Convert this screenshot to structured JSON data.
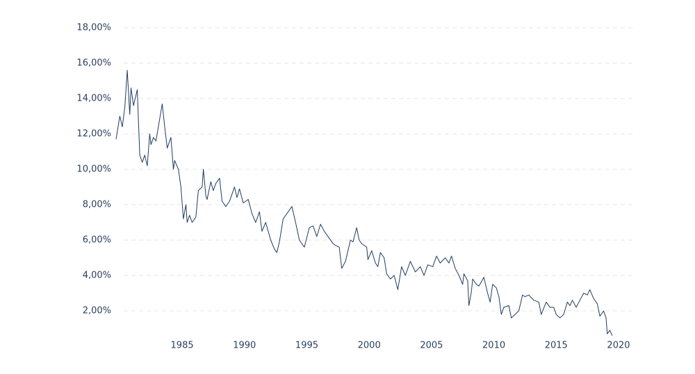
{
  "chart_data": {
    "type": "line",
    "x": [
      1979.7,
      1980.0,
      1980.2,
      1980.4,
      1980.6,
      1980.8,
      1980.9,
      1981.1,
      1981.4,
      1981.6,
      1981.8,
      1982.0,
      1982.2,
      1982.4,
      1982.5,
      1982.7,
      1982.9,
      1983.4,
      1983.6,
      1983.8,
      1984.1,
      1984.3,
      1984.4,
      1984.7,
      1984.9,
      1985.1,
      1985.3,
      1985.4,
      1985.6,
      1985.8,
      1986.1,
      1986.3,
      1986.6,
      1986.7,
      1986.9,
      1987.0,
      1987.3,
      1987.5,
      1987.7,
      1988.0,
      1988.2,
      1988.5,
      1988.8,
      1989.2,
      1989.4,
      1989.6,
      1989.9,
      1990.3,
      1990.6,
      1990.9,
      1991.2,
      1991.4,
      1991.7,
      1992.1,
      1992.4,
      1992.6,
      1992.8,
      1993.1,
      1993.4,
      1993.8,
      1994.1,
      1994.4,
      1994.8,
      1995.2,
      1995.5,
      1995.8,
      1996.1,
      1996.4,
      1996.7,
      1997.1,
      1997.3,
      1997.6,
      1997.8,
      1998.1,
      1998.5,
      1998.7,
      1999.0,
      1999.2,
      1999.4,
      1999.8,
      1999.9,
      2000.2,
      2000.5,
      2000.7,
      2000.9,
      2001.2,
      2001.4,
      2001.7,
      2002.0,
      2002.3,
      2002.6,
      2002.9,
      2003.3,
      2003.7,
      2004.1,
      2004.4,
      2004.7,
      2005.1,
      2005.4,
      2005.7,
      2006.1,
      2006.4,
      2006.6,
      2006.9,
      2007.2,
      2007.5,
      2007.6,
      2007.9,
      2008.0,
      2008.2,
      2008.3,
      2008.6,
      2008.8,
      2009.2,
      2009.5,
      2009.7,
      2009.9,
      2010.2,
      2010.4,
      2010.6,
      2010.8,
      2011.2,
      2011.4,
      2011.7,
      2012.0,
      2012.3,
      2012.5,
      2012.8,
      2013.2,
      2013.6,
      2013.8,
      2014.2,
      2014.5,
      2014.8,
      2015.0,
      2015.3,
      2015.6,
      2015.9,
      2016.1,
      2016.3,
      2016.6,
      2016.9,
      2017.2,
      2017.5,
      2017.7,
      2018.0,
      2018.3,
      2018.5,
      2018.8,
      2019.0,
      2019.1,
      2019.3,
      2019.5
    ],
    "series": [
      {
        "color": "#1f3a5f",
        "values": [
          11.7,
          13.0,
          12.4,
          13.5,
          15.6,
          13.1,
          14.6,
          13.6,
          14.5,
          10.8,
          10.4,
          10.8,
          10.2,
          12.0,
          11.4,
          11.8,
          11.6,
          13.7,
          12.4,
          11.2,
          11.8,
          10.0,
          10.5,
          10.0,
          9.0,
          7.2,
          8.0,
          7.0,
          7.4,
          7.0,
          7.3,
          8.8,
          9.0,
          10.0,
          8.5,
          8.3,
          9.3,
          8.8,
          9.2,
          9.5,
          8.2,
          7.9,
          8.2,
          9.0,
          8.4,
          8.9,
          8.1,
          8.3,
          7.5,
          7.0,
          7.6,
          6.5,
          7.0,
          6.0,
          5.5,
          5.3,
          5.9,
          7.2,
          7.5,
          7.9,
          7.0,
          6.0,
          5.6,
          6.7,
          6.8,
          6.2,
          6.9,
          6.5,
          6.2,
          5.8,
          5.7,
          5.6,
          4.4,
          4.8,
          6.0,
          5.9,
          6.7,
          6.0,
          5.8,
          5.6,
          4.9,
          5.4,
          4.7,
          4.5,
          5.3,
          5.0,
          4.1,
          3.8,
          4.0,
          3.2,
          4.5,
          4.0,
          4.8,
          4.2,
          4.5,
          4.0,
          4.6,
          4.5,
          5.1,
          4.7,
          5.0,
          4.7,
          5.1,
          4.4,
          4.0,
          3.5,
          4.1,
          3.7,
          2.3,
          3.1,
          3.8,
          3.5,
          3.4,
          3.9,
          3.0,
          2.5,
          3.5,
          3.3,
          2.8,
          1.8,
          2.2,
          2.3,
          1.6,
          1.8,
          2.0,
          2.9,
          2.8,
          2.9,
          2.6,
          2.5,
          1.8,
          2.5,
          2.2,
          2.2,
          1.8,
          1.6,
          1.8,
          2.5,
          2.3,
          2.6,
          2.2,
          2.6,
          3.0,
          2.9,
          3.2,
          2.7,
          2.4,
          1.7,
          2.0,
          1.6,
          0.7,
          0.9,
          0.6
        ]
      }
    ],
    "xlim": [
      1979.25,
      2021.2
    ],
    "xticks": [
      1985,
      1990,
      1995,
      2000,
      2005,
      2010,
      2015,
      2020
    ],
    "ylim": [
      0.3,
      18.6
    ],
    "yticks": [
      {
        "value": 2,
        "label": "2,00%"
      },
      {
        "value": 4,
        "label": "4,00%"
      },
      {
        "value": 6,
        "label": "6,00%"
      },
      {
        "value": 8,
        "label": "8,00%"
      },
      {
        "value": 10,
        "label": "10,00%"
      },
      {
        "value": 12,
        "label": "12,00%"
      },
      {
        "value": 14,
        "label": "14,00%"
      },
      {
        "value": 16,
        "label": "16,00%"
      },
      {
        "value": 18,
        "label": "18,00%"
      }
    ],
    "grid": true
  }
}
